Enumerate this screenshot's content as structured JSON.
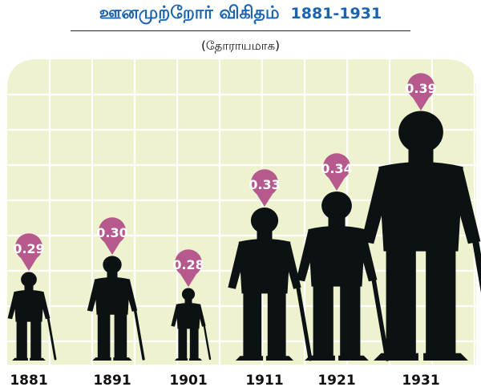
{
  "title": {
    "main": "ஊனமுற்றோர் விகிதம்",
    "years": "1881-1931"
  },
  "subtitle": "(தோராயமாக)",
  "colors": {
    "title": "#1a63b0",
    "background_panel": "#eef2cf",
    "grid": "#ffffff",
    "marker": "#b65a8e",
    "figure": "#0c1214",
    "label": "#111111"
  },
  "chart_data": {
    "type": "bar",
    "title": "ஊனமுற்றோர் விகிதம் 1881-1931",
    "subtitle": "(தோராயமாக)",
    "categories": [
      "1881",
      "1891",
      "1901",
      "1911",
      "1921",
      "1931"
    ],
    "values": [
      0.29,
      0.3,
      0.28,
      0.33,
      0.34,
      0.39
    ],
    "value_labels": [
      "0.29",
      "0.30",
      "0.28",
      "0.33",
      "0.34",
      "0.39"
    ],
    "xlabel": "",
    "ylabel": "",
    "ylim": [
      0.25,
      0.4
    ],
    "grid": true,
    "legend": "none"
  }
}
